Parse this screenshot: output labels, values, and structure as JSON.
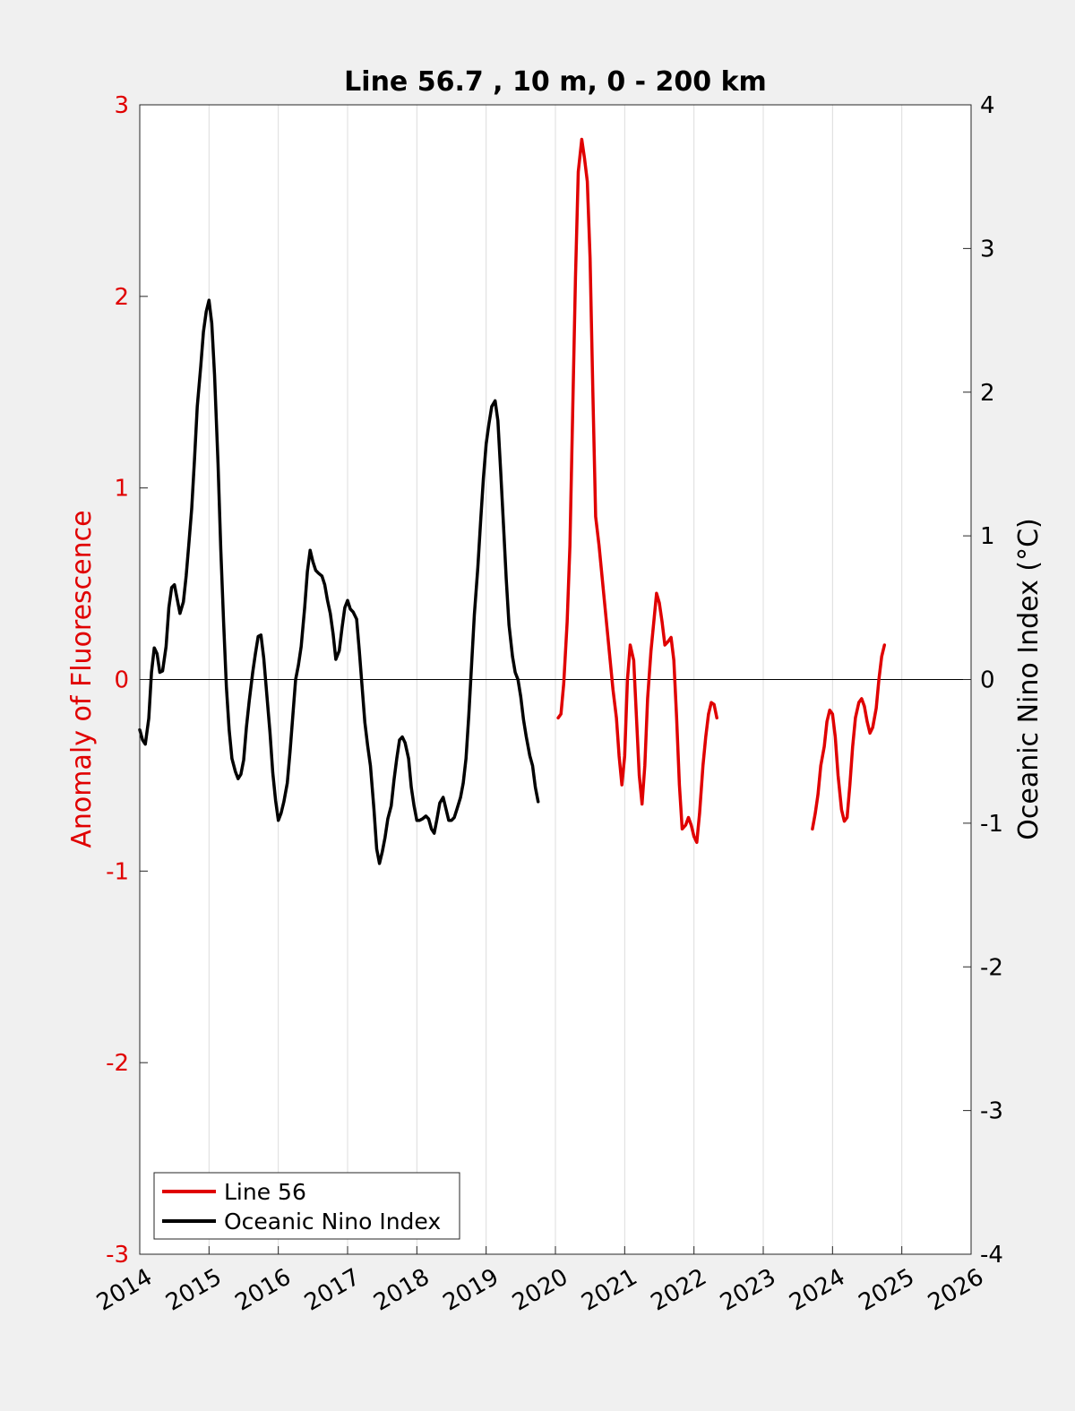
{
  "chart_data": {
    "type": "line",
    "title": "Line 56.7 , 10 m, 0 - 200 km",
    "xlabel": "",
    "ylabel_left": "Anomaly of Fluorescence",
    "ylabel_right": "Oceanic Nino Index (°C)",
    "xlim": [
      2014,
      2026
    ],
    "ylim_left": [
      -3,
      3
    ],
    "ylim_right": [
      -4,
      4
    ],
    "x_ticks": [
      "2014",
      "2015",
      "2016",
      "2017",
      "2018",
      "2019",
      "2020",
      "2021",
      "2022",
      "2023",
      "2024",
      "2025",
      "2026"
    ],
    "y_ticks_left": [
      "-3",
      "-2",
      "-1",
      "0",
      "1",
      "2",
      "3"
    ],
    "y_ticks_right": [
      "-4",
      "-3",
      "-2",
      "-1",
      "0",
      "1",
      "2",
      "3",
      "4"
    ],
    "grid": "vertical",
    "legend_position": "bottom-left",
    "colors": {
      "left_axis": "#e00000",
      "line56": "#e00000",
      "oni": "#000000",
      "plot_bg": "#ffffff",
      "figure_bg": "#f0f0f0"
    },
    "series": [
      {
        "name": "Line 56",
        "axis": "left",
        "segments": [
          [
            [
              2020.04,
              -0.2
            ],
            [
              2020.08,
              -0.18
            ],
            [
              2020.12,
              -0.02
            ],
            [
              2020.17,
              0.3
            ],
            [
              2020.21,
              0.7
            ],
            [
              2020.25,
              1.4
            ],
            [
              2020.29,
              2.1
            ],
            [
              2020.33,
              2.65
            ],
            [
              2020.38,
              2.82
            ],
            [
              2020.42,
              2.72
            ],
            [
              2020.46,
              2.6
            ],
            [
              2020.5,
              2.2
            ],
            [
              2020.54,
              1.5
            ],
            [
              2020.58,
              0.85
            ],
            [
              2020.63,
              0.7
            ],
            [
              2020.67,
              0.55
            ],
            [
              2020.71,
              0.4
            ],
            [
              2020.75,
              0.25
            ],
            [
              2020.79,
              0.1
            ],
            [
              2020.83,
              -0.05
            ],
            [
              2020.88,
              -0.2
            ],
            [
              2020.92,
              -0.4
            ],
            [
              2020.96,
              -0.55
            ],
            [
              2021.0,
              -0.4
            ],
            [
              2021.04,
              0.0
            ],
            [
              2021.08,
              0.18
            ],
            [
              2021.13,
              0.1
            ],
            [
              2021.17,
              -0.2
            ],
            [
              2021.21,
              -0.5
            ],
            [
              2021.25,
              -0.65
            ],
            [
              2021.29,
              -0.45
            ],
            [
              2021.33,
              -0.1
            ],
            [
              2021.38,
              0.15
            ],
            [
              2021.42,
              0.3
            ],
            [
              2021.46,
              0.45
            ],
            [
              2021.5,
              0.4
            ],
            [
              2021.54,
              0.3
            ],
            [
              2021.58,
              0.18
            ],
            [
              2021.63,
              0.2
            ],
            [
              2021.67,
              0.22
            ],
            [
              2021.71,
              0.1
            ],
            [
              2021.75,
              -0.2
            ],
            [
              2021.79,
              -0.55
            ],
            [
              2021.83,
              -0.78
            ],
            [
              2021.88,
              -0.76
            ],
            [
              2021.92,
              -0.72
            ],
            [
              2021.96,
              -0.76
            ],
            [
              2022.0,
              -0.82
            ],
            [
              2022.04,
              -0.85
            ],
            [
              2022.08,
              -0.7
            ],
            [
              2022.13,
              -0.45
            ],
            [
              2022.17,
              -0.3
            ],
            [
              2022.21,
              -0.18
            ],
            [
              2022.25,
              -0.12
            ],
            [
              2022.29,
              -0.13
            ],
            [
              2022.33,
              -0.2
            ]
          ],
          [
            [
              2023.71,
              -0.78
            ],
            [
              2023.75,
              -0.7
            ],
            [
              2023.79,
              -0.6
            ],
            [
              2023.83,
              -0.45
            ],
            [
              2023.88,
              -0.35
            ],
            [
              2023.92,
              -0.22
            ],
            [
              2023.96,
              -0.16
            ],
            [
              2024.0,
              -0.18
            ],
            [
              2024.04,
              -0.3
            ],
            [
              2024.08,
              -0.5
            ],
            [
              2024.13,
              -0.68
            ],
            [
              2024.17,
              -0.74
            ],
            [
              2024.21,
              -0.72
            ],
            [
              2024.25,
              -0.55
            ],
            [
              2024.29,
              -0.35
            ],
            [
              2024.33,
              -0.2
            ],
            [
              2024.38,
              -0.12
            ],
            [
              2024.42,
              -0.1
            ],
            [
              2024.46,
              -0.14
            ],
            [
              2024.5,
              -0.22
            ],
            [
              2024.54,
              -0.28
            ],
            [
              2024.58,
              -0.25
            ],
            [
              2024.63,
              -0.15
            ],
            [
              2024.67,
              0.0
            ],
            [
              2024.71,
              0.12
            ],
            [
              2024.75,
              0.18
            ]
          ]
        ]
      },
      {
        "name": "Oceanic Nino Index",
        "axis": "right",
        "points": [
          [
            2014.0,
            -0.35
          ],
          [
            2014.04,
            -0.42
          ],
          [
            2014.08,
            -0.45
          ],
          [
            2014.13,
            -0.27
          ],
          [
            2014.17,
            0.05
          ],
          [
            2014.21,
            0.22
          ],
          [
            2014.25,
            0.18
          ],
          [
            2014.29,
            0.05
          ],
          [
            2014.33,
            0.06
          ],
          [
            2014.38,
            0.23
          ],
          [
            2014.42,
            0.5
          ],
          [
            2014.46,
            0.64
          ],
          [
            2014.5,
            0.66
          ],
          [
            2014.54,
            0.56
          ],
          [
            2014.58,
            0.46
          ],
          [
            2014.63,
            0.54
          ],
          [
            2014.67,
            0.72
          ],
          [
            2014.71,
            0.95
          ],
          [
            2014.75,
            1.19
          ],
          [
            2014.79,
            1.53
          ],
          [
            2014.83,
            1.9
          ],
          [
            2014.88,
            2.18
          ],
          [
            2014.92,
            2.42
          ],
          [
            2014.96,
            2.56
          ],
          [
            2015.0,
            2.64
          ],
          [
            2015.04,
            2.48
          ],
          [
            2015.08,
            2.12
          ],
          [
            2015.13,
            1.5
          ],
          [
            2015.17,
            0.9
          ],
          [
            2015.21,
            0.4
          ],
          [
            2015.25,
            -0.05
          ],
          [
            2015.29,
            -0.35
          ],
          [
            2015.33,
            -0.55
          ],
          [
            2015.38,
            -0.64
          ],
          [
            2015.42,
            -0.69
          ],
          [
            2015.46,
            -0.66
          ],
          [
            2015.5,
            -0.56
          ],
          [
            2015.54,
            -0.33
          ],
          [
            2015.58,
            -0.15
          ],
          [
            2015.63,
            0.05
          ],
          [
            2015.67,
            0.18
          ],
          [
            2015.71,
            0.3
          ],
          [
            2015.75,
            0.31
          ],
          [
            2015.79,
            0.15
          ],
          [
            2015.83,
            -0.08
          ],
          [
            2015.88,
            -0.37
          ],
          [
            2015.92,
            -0.65
          ],
          [
            2015.96,
            -0.84
          ],
          [
            2016.0,
            -0.98
          ],
          [
            2016.04,
            -0.93
          ],
          [
            2016.08,
            -0.85
          ],
          [
            2016.13,
            -0.72
          ],
          [
            2016.17,
            -0.5
          ],
          [
            2016.21,
            -0.25
          ],
          [
            2016.25,
            0.0
          ],
          [
            2016.29,
            0.1
          ],
          [
            2016.33,
            0.23
          ],
          [
            2016.38,
            0.5
          ],
          [
            2016.42,
            0.75
          ],
          [
            2016.46,
            0.9
          ],
          [
            2016.5,
            0.82
          ],
          [
            2016.54,
            0.76
          ],
          [
            2016.58,
            0.74
          ],
          [
            2016.63,
            0.72
          ],
          [
            2016.67,
            0.66
          ],
          [
            2016.71,
            0.55
          ],
          [
            2016.75,
            0.46
          ],
          [
            2016.79,
            0.32
          ],
          [
            2016.83,
            0.14
          ],
          [
            2016.88,
            0.2
          ],
          [
            2016.92,
            0.36
          ],
          [
            2016.96,
            0.5
          ],
          [
            2017.0,
            0.55
          ],
          [
            2017.04,
            0.49
          ],
          [
            2017.08,
            0.47
          ],
          [
            2017.13,
            0.42
          ],
          [
            2017.17,
            0.2
          ],
          [
            2017.21,
            -0.05
          ],
          [
            2017.25,
            -0.3
          ],
          [
            2017.29,
            -0.46
          ],
          [
            2017.33,
            -0.6
          ],
          [
            2017.38,
            -0.9
          ],
          [
            2017.42,
            -1.18
          ],
          [
            2017.46,
            -1.28
          ],
          [
            2017.5,
            -1.2
          ],
          [
            2017.54,
            -1.1
          ],
          [
            2017.58,
            -0.97
          ],
          [
            2017.63,
            -0.88
          ],
          [
            2017.67,
            -0.7
          ],
          [
            2017.71,
            -0.55
          ],
          [
            2017.75,
            -0.42
          ],
          [
            2017.79,
            -0.4
          ],
          [
            2017.83,
            -0.44
          ],
          [
            2017.88,
            -0.55
          ],
          [
            2017.92,
            -0.75
          ],
          [
            2017.96,
            -0.88
          ],
          [
            2018.0,
            -0.98
          ],
          [
            2018.04,
            -0.98
          ],
          [
            2018.08,
            -0.97
          ],
          [
            2018.13,
            -0.95
          ],
          [
            2018.17,
            -0.97
          ],
          [
            2018.21,
            -1.04
          ],
          [
            2018.25,
            -1.07
          ],
          [
            2018.29,
            -0.97
          ],
          [
            2018.33,
            -0.86
          ],
          [
            2018.38,
            -0.82
          ],
          [
            2018.42,
            -0.9
          ],
          [
            2018.46,
            -0.98
          ],
          [
            2018.5,
            -0.98
          ],
          [
            2018.54,
            -0.96
          ],
          [
            2018.58,
            -0.9
          ],
          [
            2018.63,
            -0.82
          ],
          [
            2018.67,
            -0.72
          ],
          [
            2018.71,
            -0.55
          ],
          [
            2018.75,
            -0.25
          ],
          [
            2018.79,
            0.1
          ],
          [
            2018.83,
            0.45
          ],
          [
            2018.88,
            0.78
          ],
          [
            2018.92,
            1.1
          ],
          [
            2018.96,
            1.4
          ],
          [
            2019.0,
            1.64
          ],
          [
            2019.04,
            1.78
          ],
          [
            2019.08,
            1.9
          ],
          [
            2019.13,
            1.94
          ],
          [
            2019.17,
            1.8
          ],
          [
            2019.21,
            1.45
          ],
          [
            2019.25,
            1.08
          ],
          [
            2019.29,
            0.7
          ],
          [
            2019.33,
            0.38
          ],
          [
            2019.38,
            0.16
          ],
          [
            2019.42,
            0.05
          ],
          [
            2019.46,
            0.0
          ],
          [
            2019.5,
            -0.12
          ],
          [
            2019.54,
            -0.28
          ],
          [
            2019.58,
            -0.4
          ],
          [
            2019.63,
            -0.53
          ],
          [
            2019.67,
            -0.6
          ],
          [
            2019.71,
            -0.75
          ],
          [
            2019.75,
            -0.85
          ]
        ]
      }
    ]
  },
  "figure": {
    "title": "Line 56.7 , 10 m, 0 - 200 km",
    "ylabel_left": "Anomaly of Fluorescence",
    "ylabel_right": "Oceanic Nino Index (°C)",
    "legend": {
      "line56": "Line 56",
      "oni": "Oceanic Nino Index"
    }
  }
}
